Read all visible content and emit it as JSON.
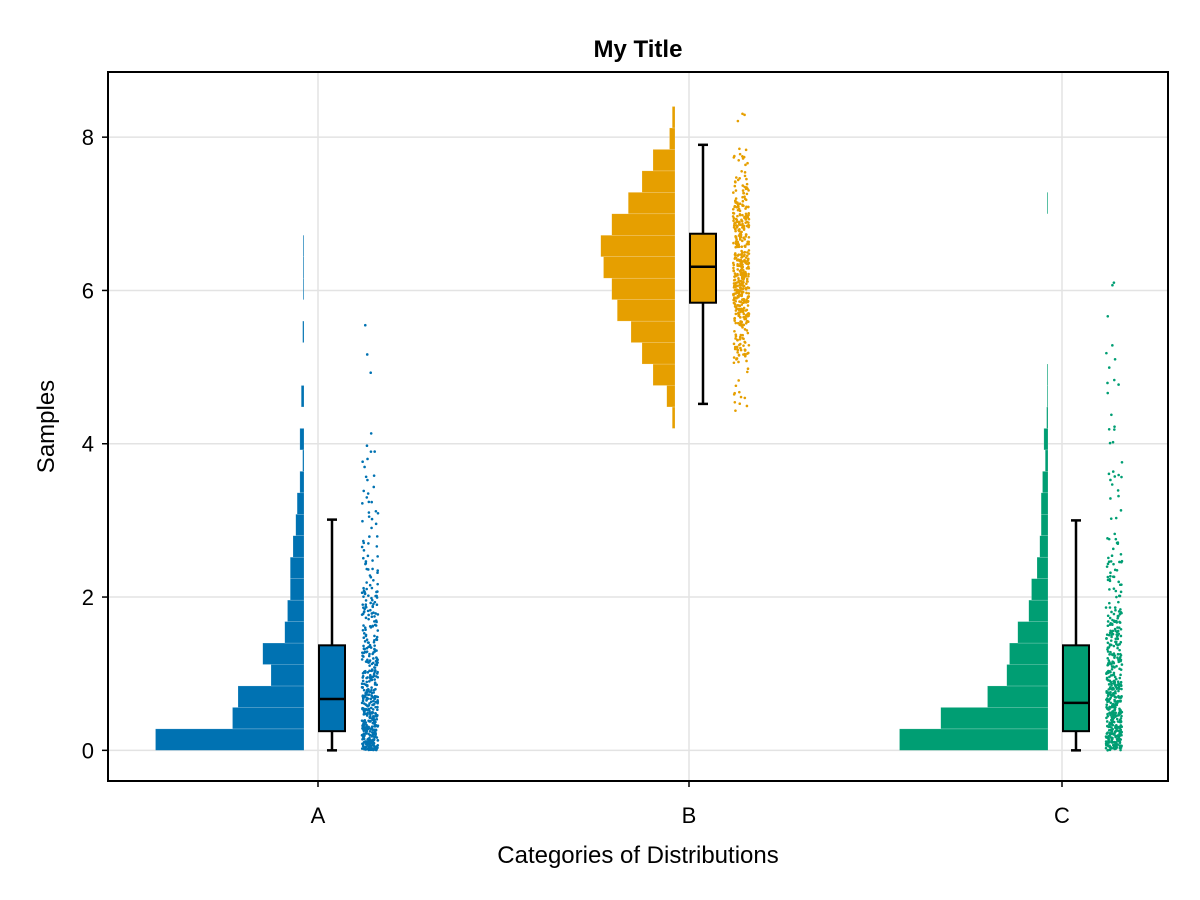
{
  "chart_data": {
    "type": "raincloud",
    "title": "My Title",
    "xlabel": "Categories of Distributions",
    "ylabel": "Samples",
    "categories": [
      "A",
      "B",
      "C"
    ],
    "ylim": [
      -0.4,
      8.85
    ],
    "yticks": [
      0,
      2,
      4,
      6,
      8
    ],
    "ytick_labels": [
      "0",
      "2",
      "4",
      "6",
      "8"
    ],
    "grid": true,
    "legend": "none",
    "series": [
      {
        "category": "A",
        "color": "#0072B2",
        "box": {
          "min": 0.0,
          "q1": 0.25,
          "median": 0.67,
          "q3": 1.37,
          "max": 3.01
        },
        "histogram": {
          "bin_width": 0.28,
          "start": 0.0,
          "counts": [
            54,
            26,
            24,
            12,
            15,
            7,
            6,
            5,
            5,
            4,
            3,
            2.5,
            1.5,
            0.5,
            1.5,
            0,
            1,
            0,
            0,
            0.5,
            0,
            0.3,
            0.3,
            0.3
          ]
        },
        "samples": {
          "count": 500,
          "distribution": "exponential",
          "scale": 1.0,
          "max_shown": 6.55
        }
      },
      {
        "category": "B",
        "color": "#E69F00",
        "box": {
          "min": 4.52,
          "q1": 5.84,
          "median": 6.31,
          "q3": 6.74,
          "max": 7.9
        },
        "histogram": {
          "bin_width": 0.28,
          "start": 4.2,
          "counts": [
            1,
            3,
            8,
            12,
            16,
            21,
            23,
            26,
            27,
            23,
            17,
            12,
            8,
            2,
            1
          ]
        },
        "samples": {
          "count": 500,
          "distribution": "normal",
          "mean": 6.25,
          "sd": 0.65,
          "min_shown": 4.42,
          "max_shown": 8.42
        }
      },
      {
        "category": "C",
        "color": "#009E73",
        "box": {
          "min": 0.0,
          "q1": 0.25,
          "median": 0.62,
          "q3": 1.37,
          "max": 3.0
        },
        "histogram": {
          "bin_width": 0.28,
          "start": 0.0,
          "counts": [
            54,
            39,
            22,
            15,
            14,
            11,
            7,
            6,
            4,
            3,
            2.5,
            2.5,
            2,
            1,
            1.5,
            0.5,
            0.3,
            0.3,
            0,
            0,
            0,
            0,
            0,
            0,
            0,
            0.3
          ]
        },
        "samples": {
          "count": 500,
          "distribution": "exponential",
          "scale": 1.0,
          "max_shown": 7.25
        }
      }
    ]
  }
}
